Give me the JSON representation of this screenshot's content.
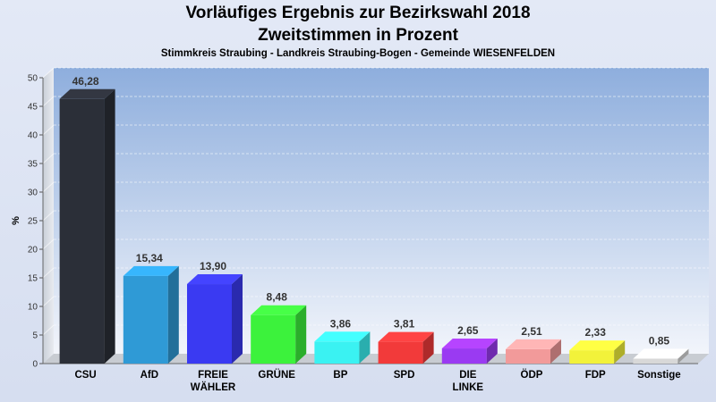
{
  "header": {
    "title": "Vorläufiges Ergebnis zur Bezirkswahl 2018",
    "subtitle": "Zweitstimmen in Prozent",
    "location": "Stimmkreis Straubing - Landkreis Straubing-Bogen - Gemeinde WIESENFELDEN"
  },
  "chart_data": {
    "type": "bar",
    "title": "Vorläufiges Ergebnis zur Bezirkswahl 2018",
    "subtitle": "Zweitstimmen in Prozent",
    "ylabel": "%",
    "xlabel": "",
    "ylim": [
      0,
      50
    ],
    "yticks": [
      0,
      5,
      10,
      15,
      20,
      25,
      30,
      35,
      40,
      45,
      50
    ],
    "grid": true,
    "categories": [
      "CSU",
      "AfD",
      "FREIE WÄHLER",
      "GRÜNE",
      "BP",
      "SPD",
      "DIE LINKE",
      "ÖDP",
      "FDP",
      "Sonstige"
    ],
    "category_lines": [
      [
        "CSU"
      ],
      [
        "AfD"
      ],
      [
        "FREIE",
        "WÄHLER"
      ],
      [
        "GRÜNE"
      ],
      [
        "BP"
      ],
      [
        "SPD"
      ],
      [
        "DIE",
        "LINKE"
      ],
      [
        "ÖDP"
      ],
      [
        "FDP"
      ],
      [
        "Sonstige"
      ]
    ],
    "values": [
      46.28,
      15.34,
      13.9,
      8.48,
      3.86,
      3.81,
      2.65,
      2.51,
      2.33,
      0.85
    ],
    "value_labels": [
      "46,28",
      "15,34",
      "13,90",
      "8,48",
      "3,86",
      "3,81",
      "2,65",
      "2,51",
      "2,33",
      "0,85"
    ],
    "colors": [
      "#2b2f38",
      "#2f9ad6",
      "#3a3af2",
      "#3cf23c",
      "#3af2f2",
      "#f23a3a",
      "#9a3af2",
      "#f29a9a",
      "#f2f23a",
      "#d8d8d8"
    ]
  }
}
